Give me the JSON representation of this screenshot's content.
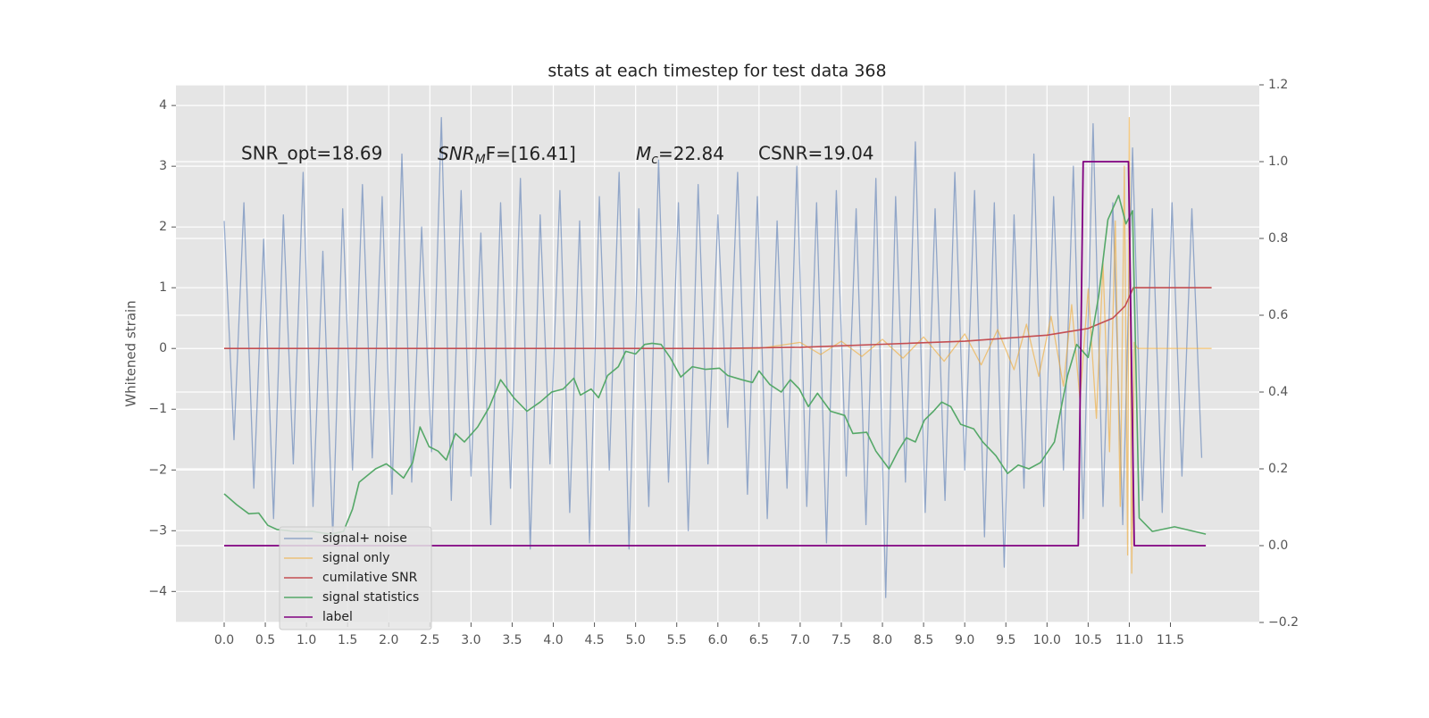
{
  "chart_data": {
    "type": "line",
    "title": "stats at each timestep for test data 368",
    "ylabel": "Whitened strain",
    "xlim": [
      -0.586,
      12.58
    ],
    "ylim": [
      -4.51,
      4.34
    ],
    "y2lim": [
      -0.2,
      1.2
    ],
    "xticks": [
      {
        "value": 0,
        "label": "0.0"
      },
      0.5,
      {
        "value": 1,
        "label": "1.0"
      },
      1.5,
      {
        "value": 2,
        "label": "2.0"
      },
      2.5,
      {
        "value": 3,
        "label": "3.0"
      },
      3.5,
      {
        "value": 4,
        "label": "4.0"
      },
      4.5,
      {
        "value": 5,
        "label": "5.0"
      },
      5.5,
      {
        "value": 6,
        "label": "6.0"
      },
      6.5,
      {
        "value": 7,
        "label": "7.0"
      },
      7.5,
      {
        "value": 8,
        "label": "8.0"
      },
      8.5,
      {
        "value": 9,
        "label": "9.0"
      },
      9.5,
      {
        "value": 10,
        "label": "10.0"
      },
      10.5,
      {
        "value": 11,
        "label": "11.0"
      },
      11.5
    ],
    "yticks": [
      {
        "value": -4,
        "label": "−4"
      },
      {
        "value": -3,
        "label": "−3"
      },
      {
        "value": -2,
        "label": "−2"
      },
      {
        "value": -1,
        "label": "−1"
      },
      0,
      1,
      2,
      3,
      4
    ],
    "y2ticks": [
      {
        "value": -0.2,
        "label": "−0.2"
      },
      {
        "value": 0,
        "label": "0.0"
      },
      0.2,
      0.4,
      0.6,
      0.8,
      {
        "value": 1,
        "label": "1.0"
      },
      1.2
    ],
    "grid": true,
    "legend": "lower left",
    "annotations": [
      {
        "text": "SNR_opt=18.69"
      },
      {
        "base": "SNR",
        "sub": "M",
        "rest": "F=[16.41]"
      },
      {
        "base": "M",
        "sub": "c",
        "rest": "=22.84"
      },
      {
        "text": "CSNR=19.04"
      }
    ],
    "series": [
      {
        "name": "signal+ noise",
        "color": "#4c72b0",
        "axis": "y",
        "x": [
          0,
          0.12,
          0.24,
          0.36,
          0.48,
          0.6,
          0.72,
          0.84,
          0.96,
          1.08,
          1.2,
          1.32,
          1.44,
          1.56,
          1.68,
          1.8,
          1.92,
          2.04,
          2.16,
          2.28,
          2.4,
          2.52,
          2.64,
          2.76,
          2.88,
          3,
          3.12,
          3.24,
          3.36,
          3.48,
          3.6,
          3.72,
          3.84,
          3.96,
          4.08,
          4.2,
          4.32,
          4.44,
          4.56,
          4.68,
          4.8,
          4.92,
          5.04,
          5.16,
          5.28,
          5.4,
          5.52,
          5.64,
          5.76,
          5.88,
          6,
          6.12,
          6.24,
          6.36,
          6.48,
          6.6,
          6.72,
          6.84,
          6.96,
          7.08,
          7.2,
          7.32,
          7.44,
          7.56,
          7.68,
          7.8,
          7.92,
          8.04,
          8.16,
          8.28,
          8.4,
          8.52,
          8.64,
          8.76,
          8.88,
          9,
          9.12,
          9.24,
          9.36,
          9.48,
          9.6,
          9.72,
          9.84,
          9.96,
          10.08,
          10.2,
          10.32,
          10.44,
          10.56,
          10.68,
          10.8,
          10.92,
          11.04,
          11.16,
          11.28,
          11.4,
          11.52,
          11.64,
          11.76,
          11.88
        ],
        "values": [
          2.1,
          -1.5,
          2.4,
          -2.3,
          1.8,
          -2.8,
          2.2,
          -1.9,
          2.9,
          -2.6,
          1.6,
          -3.1,
          2.3,
          -2.0,
          2.7,
          -1.8,
          2.5,
          -2.4,
          3.2,
          -2.2,
          2.0,
          -1.7,
          3.8,
          -2.5,
          2.6,
          -2.1,
          1.9,
          -2.9,
          2.4,
          -2.3,
          2.8,
          -3.3,
          2.2,
          -1.9,
          2.6,
          -2.7,
          2.1,
          -3.2,
          2.5,
          -2.0,
          2.9,
          -3.3,
          2.3,
          -2.6,
          3.1,
          -2.2,
          2.4,
          -3.0,
          2.7,
          -1.9,
          2.2,
          -1.3,
          2.9,
          -2.4,
          2.5,
          -2.8,
          2.1,
          -2.3,
          3.0,
          -2.6,
          2.4,
          -3.2,
          2.6,
          -2.1,
          2.3,
          -2.9,
          2.8,
          -4.1,
          2.5,
          -2.2,
          3.4,
          -2.7,
          2.3,
          -2.5,
          2.9,
          -2.0,
          2.6,
          -3.1,
          2.4,
          -3.6,
          2.2,
          -2.3,
          3.2,
          -2.6,
          2.5,
          -2.0,
          3.0,
          -2.8,
          3.7,
          -2.6,
          2.4,
          -2.9,
          3.3,
          -2.5,
          2.3,
          -2.7,
          2.4,
          -2.1,
          2.3,
          -1.8
        ]
      },
      {
        "name": "signal only",
        "color": "#f0a830",
        "axis": "y",
        "x": [
          0,
          6.5,
          7.0,
          7.25,
          7.5,
          7.75,
          8.0,
          8.25,
          8.5,
          8.75,
          9.0,
          9.2,
          9.4,
          9.6,
          9.75,
          9.9,
          10.05,
          10.2,
          10.3,
          10.4,
          10.5,
          10.6,
          10.68,
          10.76,
          10.83,
          10.89,
          10.94,
          10.98,
          11.0,
          11.03,
          11.06,
          11.1,
          12.0
        ],
        "values": [
          0,
          0,
          0.1,
          -0.1,
          0.12,
          -0.13,
          0.15,
          -0.16,
          0.19,
          -0.21,
          0.24,
          -0.27,
          0.31,
          -0.35,
          0.4,
          -0.46,
          0.53,
          -0.62,
          0.72,
          -0.84,
          0.98,
          -1.15,
          1.4,
          -1.7,
          2.1,
          -2.6,
          3.0,
          -3.4,
          3.8,
          -3.7,
          0.1,
          0,
          0
        ]
      },
      {
        "name": "cumilative SNR",
        "color": "#c44e52",
        "axis": "y",
        "x": [
          0,
          6,
          7,
          8,
          9,
          10,
          10.5,
          10.8,
          10.95,
          11,
          11.05,
          12
        ],
        "values": [
          0,
          0,
          0.02,
          0.07,
          0.12,
          0.22,
          0.33,
          0.5,
          0.7,
          0.85,
          1.0,
          1.0
        ]
      },
      {
        "name": "signal statistics",
        "color": "#55a868",
        "axis": "y2",
        "x": [
          0,
          0.15,
          0.3,
          0.42,
          0.53,
          0.64,
          0.86,
          1.07,
          1.29,
          1.45,
          1.56,
          1.64,
          1.84,
          1.97,
          2.05,
          2.18,
          2.29,
          2.38,
          2.49,
          2.6,
          2.7,
          2.81,
          2.92,
          3.08,
          3.22,
          3.36,
          3.52,
          3.68,
          3.84,
          3.98,
          4.12,
          4.25,
          4.33,
          4.46,
          4.55,
          4.66,
          4.79,
          4.88,
          5.0,
          5.11,
          5.2,
          5.31,
          5.42,
          5.55,
          5.69,
          5.85,
          6.02,
          6.12,
          6.29,
          6.42,
          6.5,
          6.63,
          6.77,
          6.88,
          6.99,
          7.1,
          7.21,
          7.37,
          7.54,
          7.64,
          7.81,
          7.92,
          8.08,
          8.19,
          8.29,
          8.4,
          8.51,
          8.62,
          8.72,
          8.83,
          8.95,
          9.11,
          9.22,
          9.38,
          9.52,
          9.65,
          9.78,
          9.92,
          10.09,
          10.25,
          10.36,
          10.5,
          10.63,
          10.74,
          10.87,
          10.96,
          11.04,
          11.12,
          11.28,
          11.55,
          11.93
        ],
        "values": [
          0.135,
          0.107,
          0.083,
          0.085,
          0.053,
          0.042,
          0.037,
          0.037,
          0.03,
          0.037,
          0.095,
          0.165,
          0.2,
          0.213,
          0.2,
          0.176,
          0.216,
          0.309,
          0.258,
          0.246,
          0.223,
          0.292,
          0.27,
          0.309,
          0.36,
          0.432,
          0.385,
          0.35,
          0.374,
          0.4,
          0.408,
          0.436,
          0.392,
          0.408,
          0.385,
          0.443,
          0.466,
          0.506,
          0.499,
          0.524,
          0.527,
          0.524,
          0.49,
          0.439,
          0.466,
          0.459,
          0.462,
          0.443,
          0.432,
          0.425,
          0.455,
          0.42,
          0.4,
          0.432,
          0.408,
          0.362,
          0.397,
          0.35,
          0.339,
          0.292,
          0.295,
          0.246,
          0.2,
          0.246,
          0.281,
          0.27,
          0.327,
          0.35,
          0.374,
          0.362,
          0.316,
          0.304,
          0.27,
          0.234,
          0.188,
          0.21,
          0.2,
          0.216,
          0.27,
          0.443,
          0.524,
          0.49,
          0.652,
          0.849,
          0.912,
          0.838,
          0.872,
          0.072,
          0.037,
          0.049,
          0.03
        ]
      },
      {
        "name": "label",
        "color": "#800080",
        "axis": "y2",
        "x": [
          0,
          10.38,
          10.44,
          10.99,
          11.06,
          11.93
        ],
        "values": [
          0,
          0,
          1,
          1,
          0,
          0
        ]
      }
    ]
  }
}
